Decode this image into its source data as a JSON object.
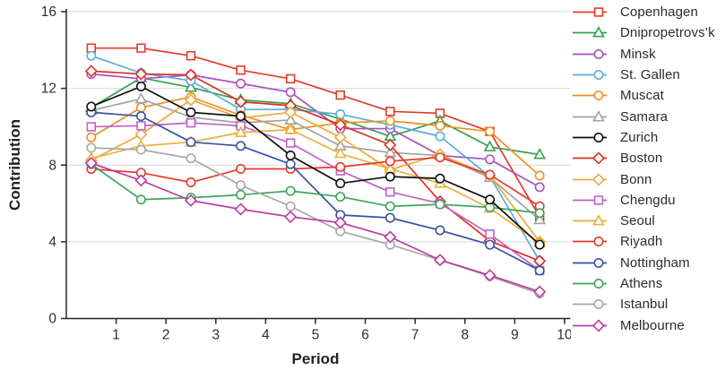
{
  "chart_data": {
    "type": "line",
    "title": "",
    "xlabel": "Period",
    "ylabel": "Contribution",
    "xlim": [
      0,
      10
    ],
    "ylim": [
      0,
      16
    ],
    "x_ticks": [
      "1",
      "2",
      "3",
      "4",
      "5",
      "6",
      "7",
      "8",
      "9",
      "10"
    ],
    "y_ticks": [
      "0",
      "4",
      "8",
      "12",
      "16"
    ],
    "grid": "horizontal-only",
    "legend_position": "right",
    "axis_color": "#262626",
    "grid_color": "#d9d9d9",
    "x": [
      0.5,
      1.5,
      2.5,
      3.5,
      4.5,
      5.5,
      6.5,
      7.5,
      8.5,
      9.5
    ],
    "series": [
      {
        "name": "Copenhagen",
        "color": "#e23b2b",
        "marker": "square",
        "values": [
          14.1,
          14.1,
          13.7,
          12.95,
          12.5,
          11.65,
          10.8,
          10.7,
          9.75,
          5.3
        ]
      },
      {
        "name": "Dnipropetrovs’k",
        "color": "#35a04f",
        "marker": "triangle",
        "values": [
          11.0,
          12.55,
          12.05,
          11.4,
          11.2,
          10.4,
          9.5,
          10.3,
          8.95,
          8.55
        ]
      },
      {
        "name": "Minsk",
        "color": "#ab4fbe",
        "marker": "circle",
        "values": [
          12.75,
          12.5,
          12.7,
          12.25,
          11.8,
          9.9,
          9.9,
          8.5,
          8.3,
          6.85
        ]
      },
      {
        "name": "St. Gallen",
        "color": "#5aaede",
        "marker": "circle",
        "values": [
          13.7,
          12.8,
          12.4,
          10.9,
          10.9,
          10.65,
          10.1,
          9.5,
          7.4,
          3.0
        ]
      },
      {
        "name": "Muscat",
        "color": "#ee9022",
        "marker": "circle",
        "values": [
          9.45,
          11.0,
          11.55,
          10.6,
          9.85,
          10.2,
          10.3,
          10.05,
          9.75,
          7.45
        ]
      },
      {
        "name": "Samara",
        "color": "#a2a2a2",
        "marker": "triangle",
        "values": [
          10.85,
          11.45,
          10.5,
          10.2,
          10.35,
          9.0,
          8.65,
          8.5,
          7.35,
          5.15
        ]
      },
      {
        "name": "Zurich",
        "color": "#111111",
        "marker": "circle",
        "values": [
          11.05,
          12.1,
          10.75,
          10.55,
          8.5,
          7.05,
          7.4,
          7.3,
          6.2,
          3.85
        ]
      },
      {
        "name": "Boston",
        "color": "#d93122",
        "marker": "diamond",
        "values": [
          12.9,
          12.75,
          12.7,
          11.3,
          11.1,
          10.1,
          9.05,
          6.1,
          4.05,
          3.0
        ]
      },
      {
        "name": "Bonn",
        "color": "#efa83e",
        "marker": "diamond",
        "values": [
          8.25,
          9.6,
          11.4,
          10.45,
          10.75,
          9.45,
          7.75,
          8.55,
          7.45,
          4.0
        ]
      },
      {
        "name": "Chengdu",
        "color": "#c161c9",
        "marker": "square",
        "values": [
          10.0,
          10.05,
          10.2,
          10.05,
          9.15,
          7.7,
          6.6,
          6.0,
          4.4,
          2.5
        ]
      },
      {
        "name": "Seoul",
        "color": "#e9b13d",
        "marker": "triangle",
        "values": [
          8.35,
          9.0,
          9.2,
          9.7,
          9.85,
          8.6,
          7.8,
          7.05,
          5.75,
          3.95
        ]
      },
      {
        "name": "Riyadh",
        "color": "#e73a2b",
        "marker": "circle",
        "values": [
          7.8,
          7.6,
          7.1,
          7.8,
          7.8,
          7.9,
          8.2,
          8.4,
          7.5,
          5.85
        ]
      },
      {
        "name": "Nottingham",
        "color": "#3a53a4",
        "marker": "circle",
        "values": [
          10.75,
          10.55,
          9.2,
          9.0,
          8.05,
          5.4,
          5.25,
          4.6,
          3.85,
          2.5
        ]
      },
      {
        "name": "Athens",
        "color": "#3fa45b",
        "marker": "circle",
        "values": [
          8.05,
          6.2,
          6.3,
          6.45,
          6.65,
          6.35,
          5.85,
          5.95,
          5.8,
          5.5
        ]
      },
      {
        "name": "Istanbul",
        "color": "#a8a8a8",
        "marker": "circle",
        "values": [
          8.9,
          8.8,
          8.35,
          6.95,
          5.85,
          4.55,
          3.85,
          3.05,
          2.2,
          1.3
        ]
      },
      {
        "name": "Melbourne",
        "color": "#bd3aa4",
        "marker": "diamond",
        "values": [
          8.1,
          7.2,
          6.15,
          5.7,
          5.3,
          5.0,
          4.25,
          3.05,
          2.25,
          1.4
        ]
      }
    ]
  }
}
